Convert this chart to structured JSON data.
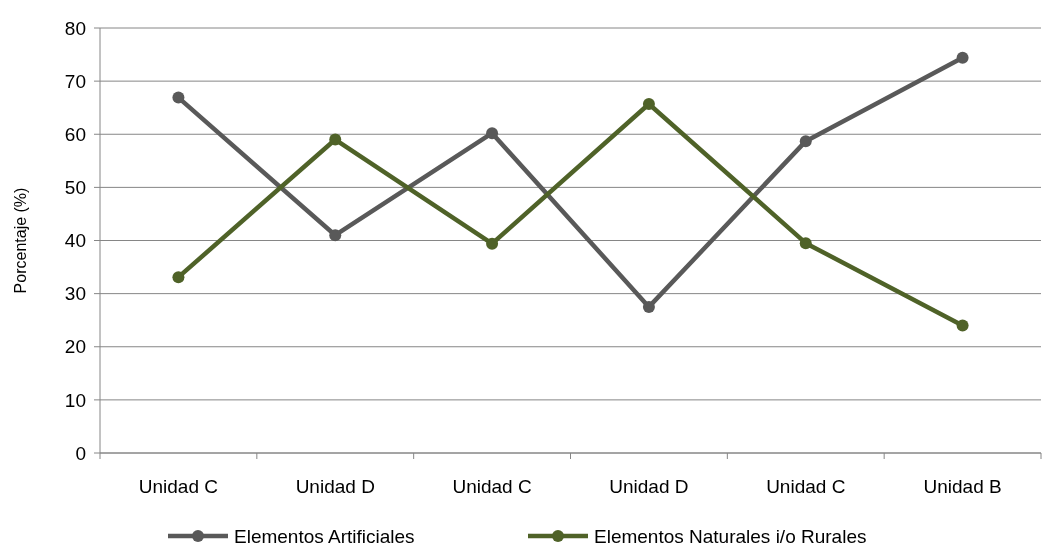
{
  "chart_data": {
    "type": "line",
    "ylabel": "Porcentaje (%)",
    "categories": [
      "Unidad C",
      "Unidad D",
      "Unidad C",
      "Unidad D",
      "Unidad C",
      "Unidad B"
    ],
    "series": [
      {
        "name": "Elementos Artificiales",
        "color": "#595959",
        "values": [
          66.9,
          41.0,
          60.2,
          27.5,
          58.7,
          74.4
        ]
      },
      {
        "name": "Elementos Naturales i/o Rurales",
        "color": "#4f6228",
        "values": [
          33.1,
          59.0,
          39.4,
          65.7,
          39.5,
          24.0
        ]
      }
    ],
    "ylim": [
      0,
      80
    ],
    "yticks": [
      0,
      10,
      20,
      30,
      40,
      50,
      60,
      70,
      80
    ],
    "grid": "y",
    "legend": "bottom",
    "marker": "circle",
    "line_style": "solid"
  }
}
